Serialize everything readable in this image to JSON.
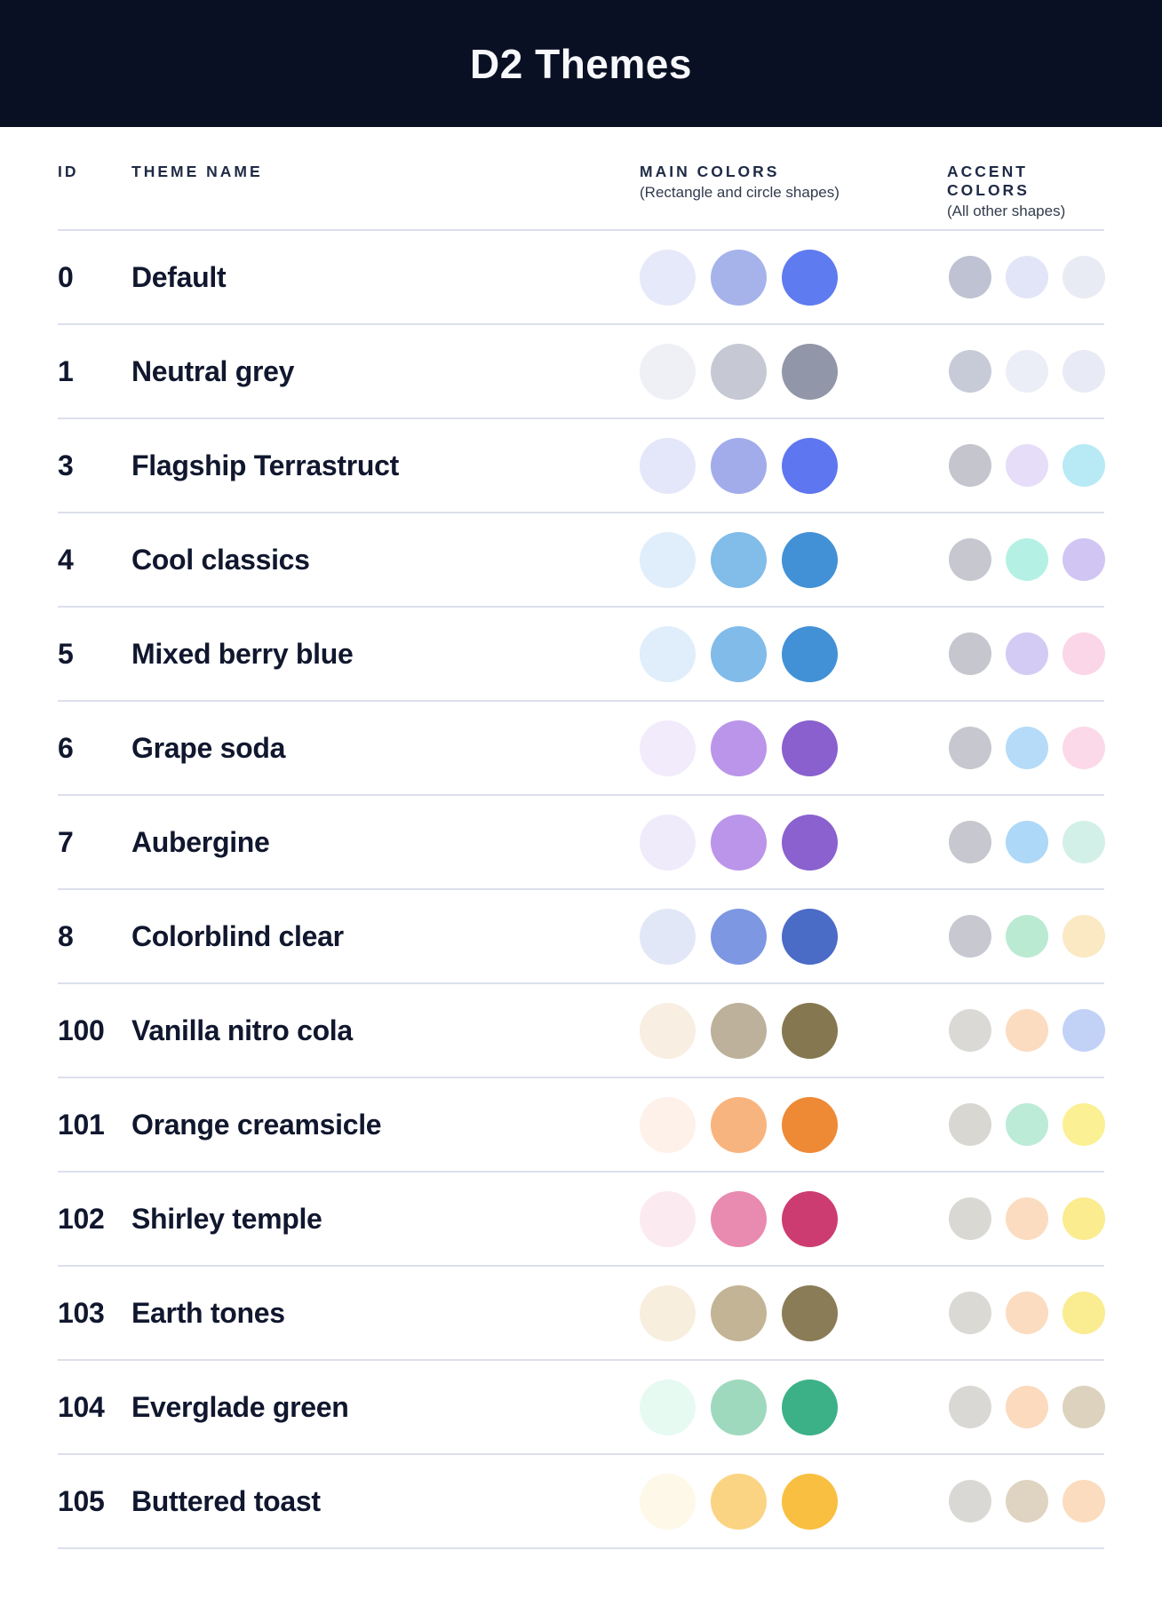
{
  "header": {
    "title": "D2 Themes",
    "banner_bg": "#0A1023",
    "title_color": "#F7F8FC"
  },
  "table": {
    "columns": {
      "id_label": "ID",
      "name_label": "THEME NAME",
      "main_label": "MAIN COLORS",
      "main_sublabel": "(Rectangle and circle shapes)",
      "accent_label": "ACCENT COLORS",
      "accent_sublabel": "(All other shapes)"
    },
    "rows": [
      {
        "id": "0",
        "name": "Default",
        "main_colors": [
          "#E6E9F9",
          "#A6B3EB",
          "#5E7BEF"
        ],
        "accent_colors": [
          "#BFC2D2",
          "#E2E5F7",
          "#E9EBF4"
        ]
      },
      {
        "id": "1",
        "name": "Neutral grey",
        "main_colors": [
          "#EEF0F6",
          "#C6C9D4",
          "#9197A8"
        ],
        "accent_colors": [
          "#C7CAD7",
          "#EBEEF7",
          "#E8EBF5"
        ]
      },
      {
        "id": "3",
        "name": "Flagship Terrastruct",
        "main_colors": [
          "#E4E7F9",
          "#A2ACEB",
          "#5E76EF"
        ],
        "accent_colors": [
          "#C4C5CD",
          "#E6DDF8",
          "#B8EAF5"
        ]
      },
      {
        "id": "4",
        "name": "Cool classics",
        "main_colors": [
          "#DFEEFA",
          "#82BCE9",
          "#4291D6"
        ],
        "accent_colors": [
          "#C6C7CF",
          "#B4F1E4",
          "#D0C5F3"
        ]
      },
      {
        "id": "5",
        "name": "Mixed berry blue",
        "main_colors": [
          "#DFEEFA",
          "#81BBE9",
          "#4291D6"
        ],
        "accent_colors": [
          "#C5C6CE",
          "#D4CBF4",
          "#FBD6E8"
        ]
      },
      {
        "id": "6",
        "name": "Grape soda",
        "main_colors": [
          "#F2EBFB",
          "#BA95E9",
          "#8960CE"
        ],
        "accent_colors": [
          "#C7C7CF",
          "#B5DBF8",
          "#FBD9E9"
        ]
      },
      {
        "id": "7",
        "name": "Aubergine",
        "main_colors": [
          "#F0EBFA",
          "#BB95E9",
          "#8A61CE"
        ],
        "accent_colors": [
          "#C6C7CF",
          "#ADD8F7",
          "#D3F0E8"
        ]
      },
      {
        "id": "8",
        "name": "Colorblind clear",
        "main_colors": [
          "#E2E7F8",
          "#7D97E3",
          "#4A6BC6"
        ],
        "accent_colors": [
          "#C7C8D0",
          "#BBEAD2",
          "#FBE9C4"
        ]
      },
      {
        "id": "100",
        "name": "Vanilla nitro cola",
        "main_colors": [
          "#F8EEE2",
          "#BDB19B",
          "#857850"
        ],
        "accent_colors": [
          "#DAD9D5",
          "#FBDCC0",
          "#C2D2F7"
        ]
      },
      {
        "id": "101",
        "name": "Orange creamsicle",
        "main_colors": [
          "#FEF1E9",
          "#F8B47E",
          "#EE8935"
        ],
        "accent_colors": [
          "#D9D7D2",
          "#BCEBD7",
          "#FBF094"
        ]
      },
      {
        "id": "102",
        "name": "Shirley temple",
        "main_colors": [
          "#FCEAF1",
          "#E98AB0",
          "#CD3C70"
        ],
        "accent_colors": [
          "#DAD8D3",
          "#FBDCC0",
          "#FAEC8F"
        ]
      },
      {
        "id": "103",
        "name": "Earth tones",
        "main_colors": [
          "#F8EEDE",
          "#C3B495",
          "#8A7C57"
        ],
        "accent_colors": [
          "#DAD9D4",
          "#FBDCC1",
          "#FAEC90"
        ]
      },
      {
        "id": "104",
        "name": "Everglade green",
        "main_colors": [
          "#E6FAF2",
          "#9ED9BE",
          "#3CB187"
        ],
        "accent_colors": [
          "#DAD8D4",
          "#FBDABD",
          "#DDD2BE"
        ]
      },
      {
        "id": "105",
        "name": "Buttered toast",
        "main_colors": [
          "#FEF8E8",
          "#FBD483",
          "#F9BF40"
        ],
        "accent_colors": [
          "#DAD8D5",
          "#DFD4C1",
          "#FCDCBE"
        ]
      }
    ]
  },
  "colors": {
    "divider": "#DCDFEB",
    "header_text": "#1E2A45",
    "sublabel_text": "#333B4D",
    "row_text": "#10172E",
    "page_bg": "#FFFFFF"
  }
}
